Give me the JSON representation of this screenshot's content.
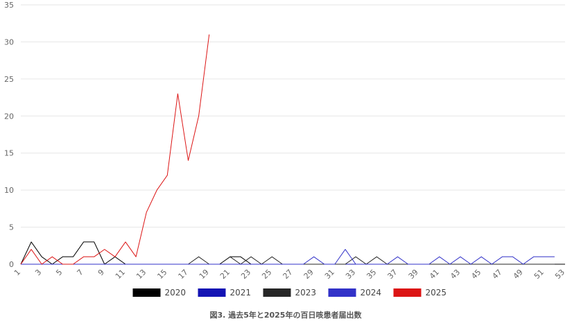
{
  "chart_data": {
    "type": "line",
    "title": "図3. 過去5年と2025年の百日咳患者届出数",
    "xlabel": "",
    "ylabel": "",
    "ylim": [
      0,
      35
    ],
    "yticks": [
      0,
      5,
      10,
      15,
      20,
      25,
      30,
      35
    ],
    "xlim": [
      1,
      53
    ],
    "xticks": [
      1,
      3,
      5,
      7,
      9,
      11,
      13,
      15,
      17,
      19,
      21,
      23,
      25,
      27,
      29,
      31,
      33,
      35,
      37,
      39,
      41,
      43,
      45,
      47,
      49,
      51,
      53
    ],
    "grid": true,
    "legend_position": "bottom",
    "series": [
      {
        "name": "2020",
        "color": "#000000",
        "x": [
          1,
          2,
          3,
          4,
          5,
          6,
          7,
          8,
          9,
          10,
          11,
          12,
          13,
          14,
          15,
          16,
          17,
          18,
          19,
          20,
          21,
          22,
          23,
          24,
          25,
          26,
          27,
          28,
          29,
          30,
          31,
          32,
          33,
          34,
          35,
          36,
          37,
          38,
          39,
          40,
          41,
          42,
          43,
          44,
          45,
          46,
          47,
          48,
          49,
          50,
          51,
          52,
          53
        ],
        "values": [
          0,
          3,
          1,
          0,
          1,
          1,
          3,
          3,
          0,
          1,
          0,
          0,
          0,
          0,
          0,
          0,
          0,
          0,
          0,
          0,
          1,
          1,
          0,
          0,
          0,
          0,
          0,
          0,
          0,
          0,
          0,
          0,
          0,
          0,
          0,
          0,
          0,
          0,
          0,
          0,
          0,
          0,
          0,
          0,
          0,
          0,
          0,
          0,
          0,
          0,
          0,
          0,
          0
        ]
      },
      {
        "name": "2021",
        "color": "#1414b4",
        "x": [
          1,
          2,
          3,
          4,
          5,
          6,
          7,
          8,
          9,
          10,
          11,
          12,
          13,
          14,
          15,
          16,
          17,
          18,
          19,
          20,
          21,
          22,
          23,
          24,
          25,
          26,
          27,
          28,
          29,
          30,
          31,
          32,
          33,
          34,
          35,
          36,
          37,
          38,
          39,
          40,
          41,
          42,
          43,
          44,
          45,
          46,
          47,
          48,
          49,
          50,
          51,
          52
        ],
        "values": [
          0,
          0,
          0,
          0,
          0,
          0,
          0,
          0,
          0,
          0,
          0,
          0,
          0,
          0,
          0,
          0,
          0,
          0,
          0,
          0,
          0,
          0,
          0,
          0,
          0,
          0,
          0,
          0,
          0,
          0,
          0,
          0,
          0,
          0,
          0,
          0,
          0,
          0,
          0,
          0,
          0,
          0,
          0,
          0,
          0,
          0,
          0,
          0,
          0,
          0,
          0,
          0
        ]
      },
      {
        "name": "2023",
        "color": "#262626",
        "x": [
          1,
          2,
          3,
          4,
          5,
          6,
          7,
          8,
          9,
          10,
          11,
          12,
          13,
          14,
          15,
          16,
          17,
          18,
          19,
          20,
          21,
          22,
          23,
          24,
          25,
          26,
          27,
          28,
          29,
          30,
          31,
          32,
          33,
          34,
          35,
          36,
          37,
          38,
          39,
          40,
          41,
          42,
          43,
          44,
          45,
          46,
          47,
          48,
          49,
          50,
          51,
          52
        ],
        "values": [
          0,
          0,
          0,
          0,
          0,
          0,
          0,
          0,
          0,
          0,
          0,
          0,
          0,
          0,
          0,
          0,
          0,
          1,
          0,
          0,
          1,
          0,
          1,
          0,
          1,
          0,
          0,
          0,
          0,
          0,
          0,
          0,
          1,
          0,
          1,
          0,
          0,
          0,
          0,
          0,
          0,
          0,
          0,
          0,
          0,
          0,
          0,
          0,
          0,
          0,
          0,
          0
        ]
      },
      {
        "name": "2024",
        "color": "#3232c8",
        "x": [
          1,
          2,
          3,
          4,
          5,
          6,
          7,
          8,
          9,
          10,
          11,
          12,
          13,
          14,
          15,
          16,
          17,
          18,
          19,
          20,
          21,
          22,
          23,
          24,
          25,
          26,
          27,
          28,
          29,
          30,
          31,
          32,
          33,
          34,
          35,
          36,
          37,
          38,
          39,
          40,
          41,
          42,
          43,
          44,
          45,
          46,
          47,
          48,
          49,
          50,
          51,
          52
        ],
        "values": [
          0,
          0,
          0,
          0,
          0,
          0,
          0,
          0,
          0,
          0,
          0,
          0,
          0,
          0,
          0,
          0,
          0,
          0,
          0,
          0,
          0,
          0,
          0,
          0,
          0,
          0,
          0,
          0,
          1,
          0,
          0,
          2,
          0,
          0,
          0,
          0,
          1,
          0,
          0,
          0,
          1,
          0,
          1,
          0,
          1,
          0,
          1,
          1,
          0,
          1,
          1,
          1
        ]
      },
      {
        "name": "2025",
        "color": "#dc1414",
        "x": [
          1,
          2,
          3,
          4,
          5,
          6,
          7,
          8,
          9,
          10,
          11,
          12,
          13,
          14,
          15,
          16,
          17,
          18,
          19
        ],
        "values": [
          0,
          2,
          0,
          1,
          0,
          0,
          1,
          1,
          2,
          1,
          3,
          1,
          7,
          10,
          12,
          23,
          14,
          20,
          31
        ]
      }
    ]
  }
}
